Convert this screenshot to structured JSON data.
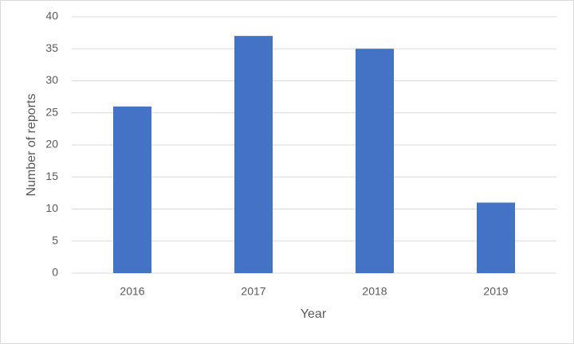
{
  "chart_data": {
    "type": "bar",
    "x_label": "Year",
    "y_label": "Number of reports",
    "categories": [
      "2016",
      "2017",
      "2018",
      "2019"
    ],
    "values": [
      26,
      37,
      35,
      11
    ],
    "color": "#4472c4",
    "ylim": [
      0,
      40
    ],
    "yticks": [
      0,
      5,
      10,
      15,
      20,
      25,
      30,
      35,
      40
    ],
    "grid": true
  }
}
